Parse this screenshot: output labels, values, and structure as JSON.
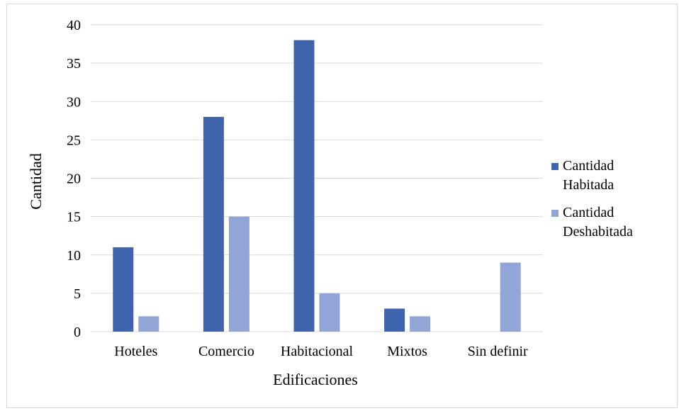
{
  "chart_data": {
    "type": "bar",
    "title": "",
    "xlabel": "Edificaciones",
    "ylabel": "Cantidad",
    "categories": [
      "Hoteles",
      "Comercio",
      "Habitacional",
      "Mixtos",
      "Sin definir"
    ],
    "series": [
      {
        "name": "Cantidad Habitada",
        "legend_lines": [
          "Cantidad",
          "Habitada"
        ],
        "color": "#3f64ae",
        "values": [
          11,
          28,
          38,
          3,
          0
        ]
      },
      {
        "name": "Cantidad Deshabitada",
        "legend_lines": [
          "Cantidad",
          "Deshabitada"
        ],
        "color": "#91a6d6",
        "values": [
          2,
          15,
          5,
          2,
          9
        ]
      }
    ],
    "ylim": [
      0,
      40
    ],
    "yticks": [
      0,
      5,
      10,
      15,
      20,
      25,
      30,
      35,
      40
    ],
    "grid": true,
    "legend_position": "right"
  }
}
